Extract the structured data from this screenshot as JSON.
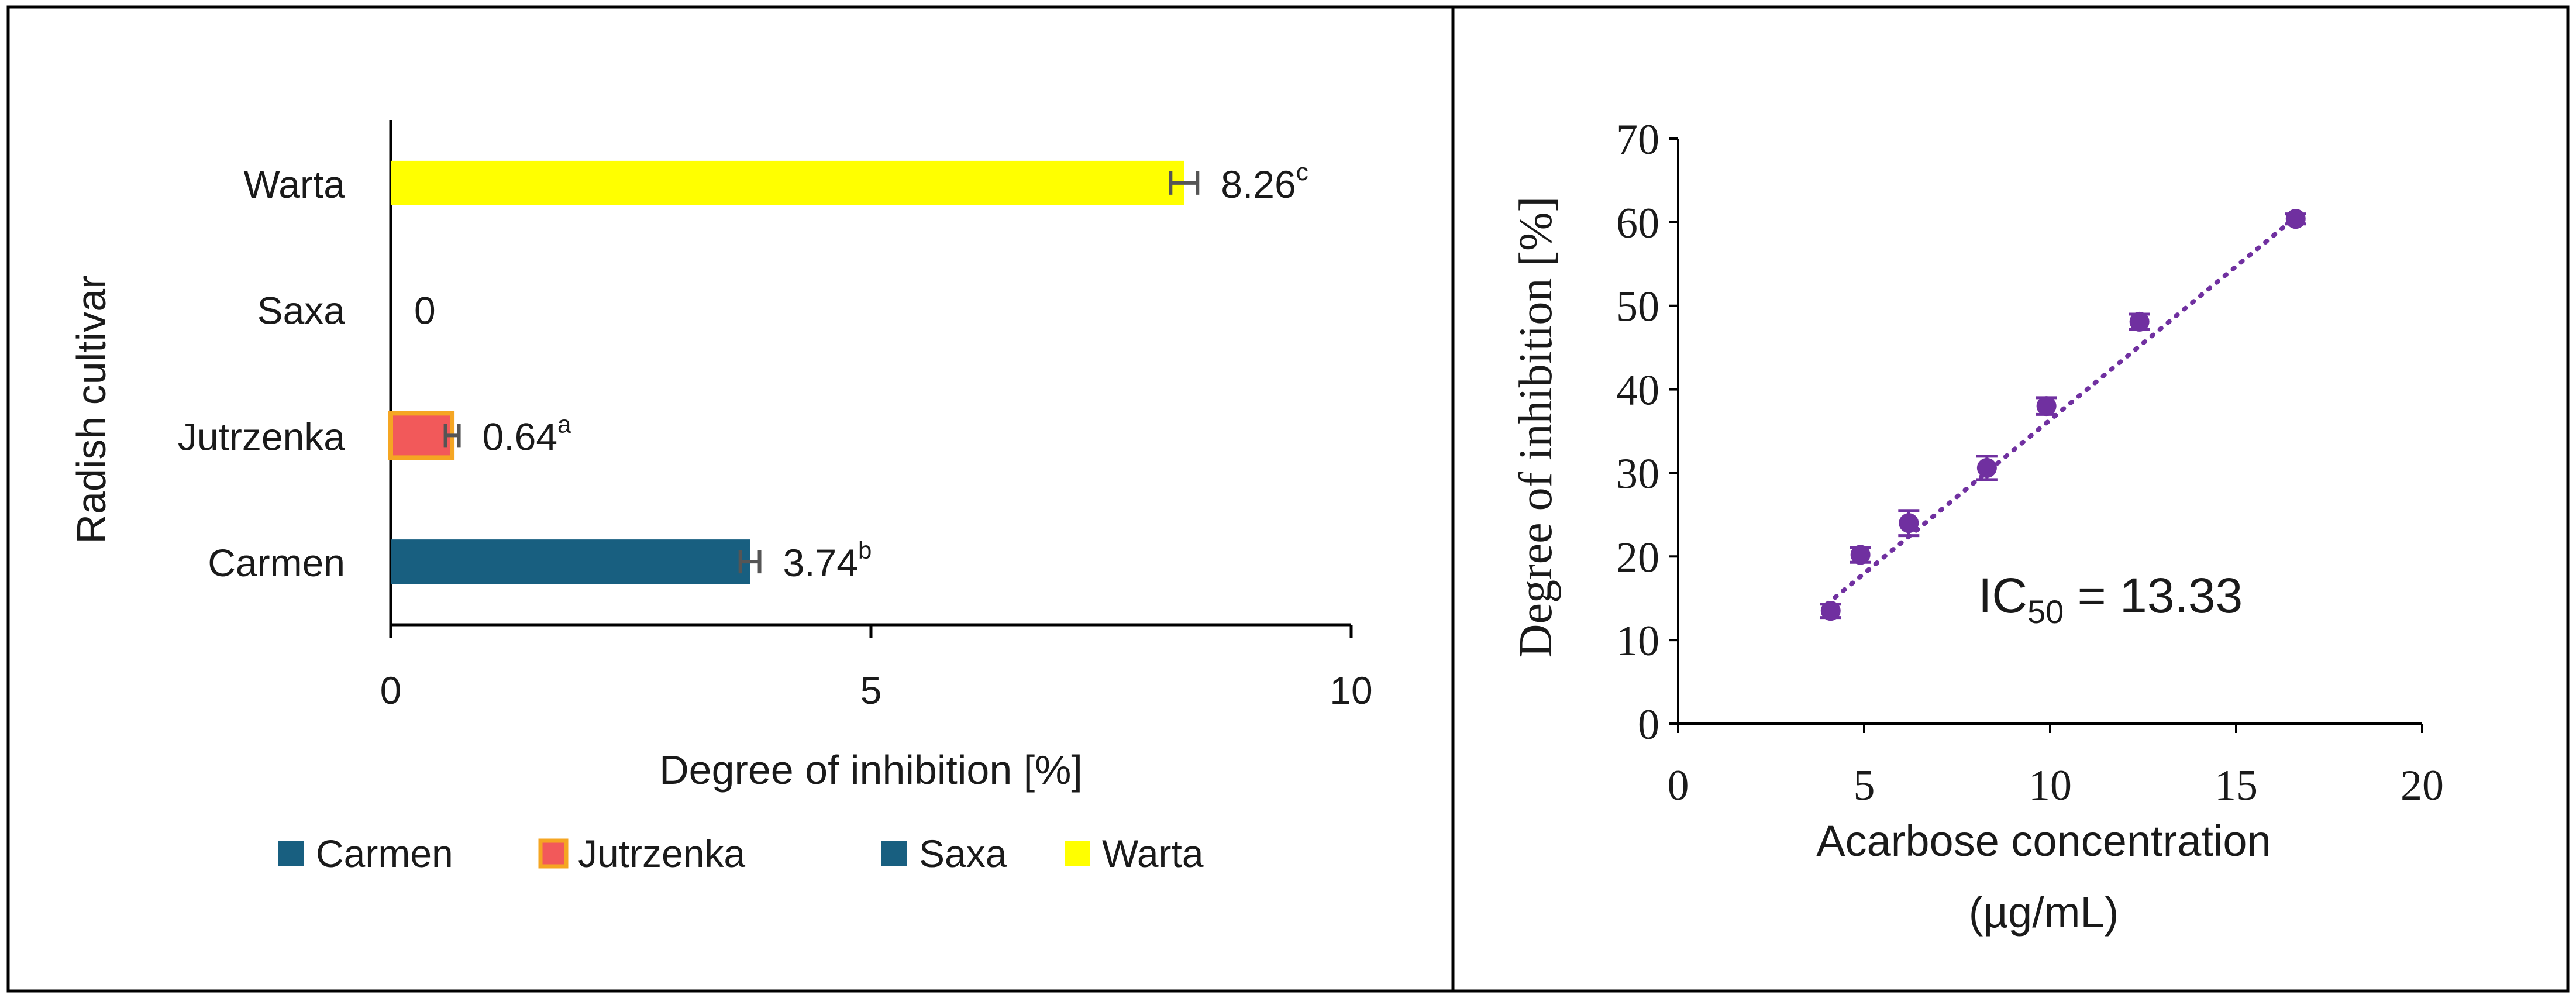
{
  "chart_data": [
    {
      "type": "bar",
      "orientation": "horizontal",
      "categories": [
        "Carmen",
        "Jutrzenka",
        "Saxa",
        "Warta"
      ],
      "values": [
        3.74,
        0.64,
        0,
        8.26
      ],
      "error": [
        0.1,
        0.07,
        0,
        0.14
      ],
      "data_labels": [
        "3.74",
        "0.64",
        "0",
        "8.26"
      ],
      "data_label_superscripts": [
        "b",
        "a",
        "",
        "c"
      ],
      "colors": [
        "#185f80",
        "#f2595a",
        "#185f80",
        "#ffff00"
      ],
      "series_outline": [
        "none",
        "#f5a623",
        "none",
        "none"
      ],
      "xlabel": "Degree of inhibition [%]",
      "ylabel": "Radish cultivar",
      "xlim": [
        0,
        10
      ],
      "x_ticks": [
        "0",
        "5",
        "10"
      ],
      "grid": false,
      "legend": {
        "placement": "bottom",
        "entries": [
          "Carmen",
          "Jutrzenka",
          "Saxa",
          "Warta"
        ]
      }
    },
    {
      "type": "scatter",
      "x": [
        4.1,
        4.9,
        6.2,
        8.3,
        9.9,
        12.4,
        16.6
      ],
      "y": [
        13.5,
        20.2,
        24.0,
        30.6,
        38.0,
        48.1,
        60.4
      ],
      "error": [
        0.8,
        0.9,
        1.5,
        1.4,
        1.0,
        0.9,
        0.6
      ],
      "trendline": {
        "type": "linear",
        "style": "dotted",
        "x": [
          4.0,
          16.6
        ],
        "y": [
          14.3,
          60.6
        ]
      },
      "color": "#7030a0",
      "xlabel": "Acarbose concentration",
      "xlabel_line2": "(µg/mL)",
      "ylabel": "Degree of inhibition [%]",
      "xlim": [
        0,
        20
      ],
      "ylim": [
        0,
        70
      ],
      "x_ticks": [
        "0",
        "5",
        "10",
        "15",
        "20"
      ],
      "y_ticks": [
        "0",
        "10",
        "20",
        "30",
        "40",
        "50",
        "60",
        "70"
      ],
      "annotation": {
        "prefix": "IC",
        "subscript": "50",
        "suffix": " = 13.33"
      },
      "grid": false
    }
  ]
}
